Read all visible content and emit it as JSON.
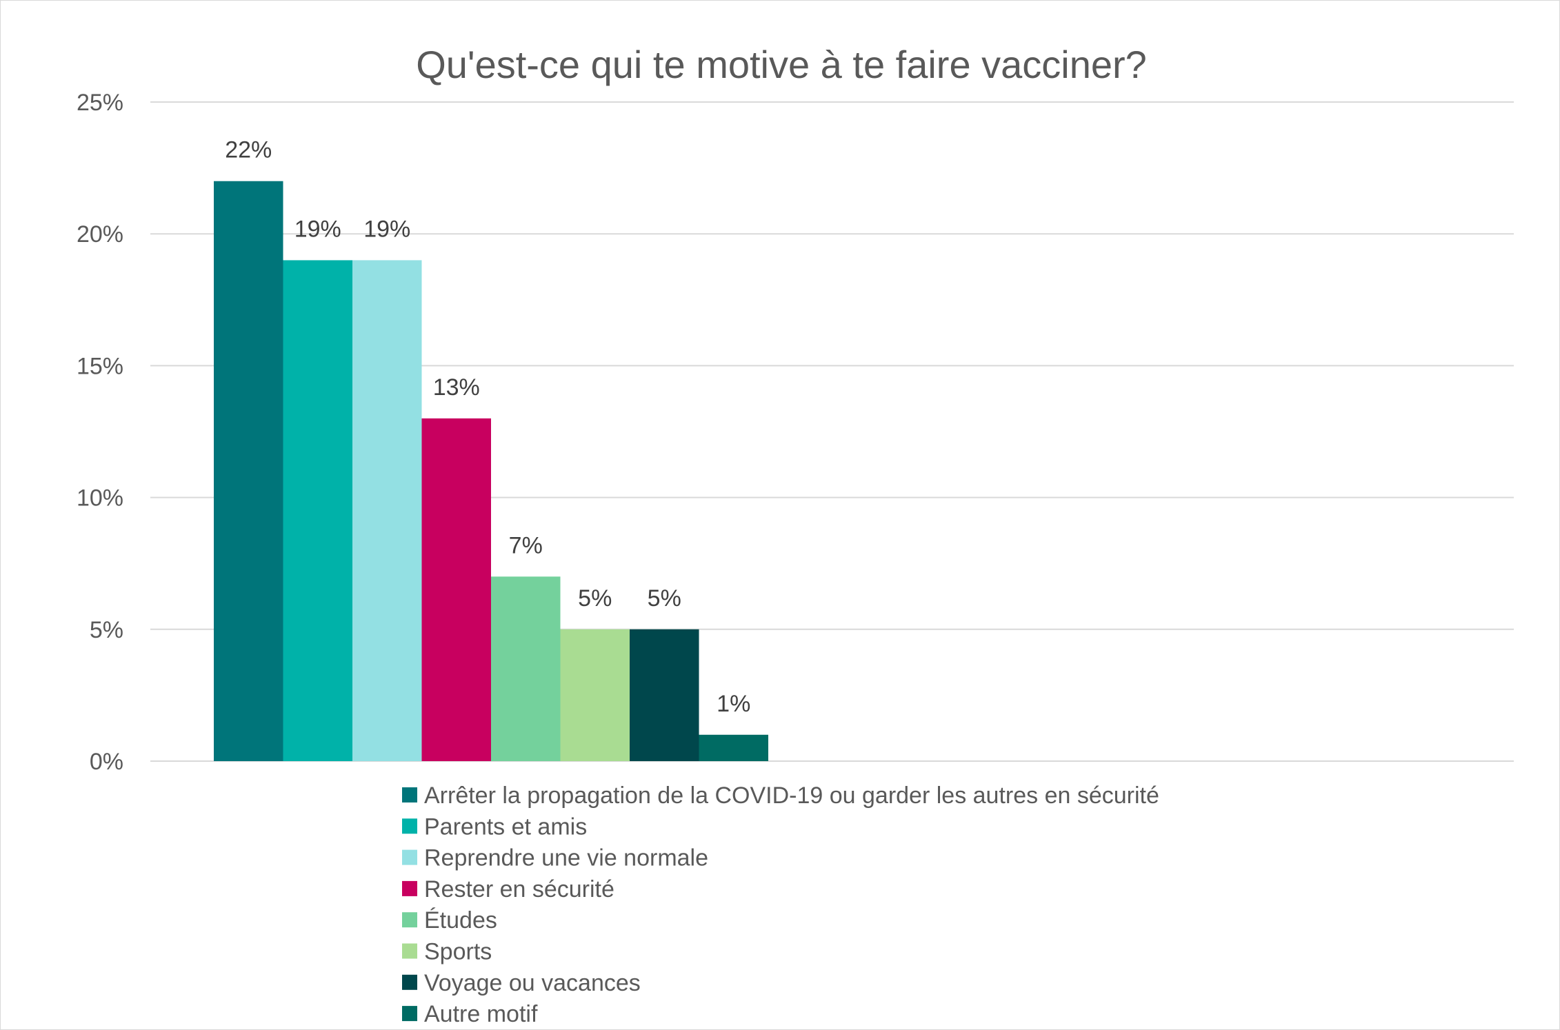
{
  "chart_data": {
    "type": "bar",
    "title": "Qu'est-ce qui te motive à te faire vacciner?",
    "xlabel": "",
    "ylabel": "",
    "ylim": [
      0,
      25
    ],
    "y_ticks": [
      "0%",
      "5%",
      "10%",
      "15%",
      "20%",
      "25%"
    ],
    "grid": true,
    "legend_position": "bottom",
    "series": [
      {
        "name": "Arrêter la propagation de la COVID-19 ou garder les autres en sécurité",
        "value": 22,
        "label": "22%",
        "color": "#00757A"
      },
      {
        "name": "Parents et amis",
        "value": 19,
        "label": "19%",
        "color": "#00B2A9"
      },
      {
        "name": "Reprendre une vie normale",
        "value": 19,
        "label": "19%",
        "color": "#93E0E3"
      },
      {
        "name": "Rester en sécurité",
        "value": 13,
        "label": "13%",
        "color": "#C8005F"
      },
      {
        "name": "Études",
        "value": 7,
        "label": "7%",
        "color": "#74D19C"
      },
      {
        "name": "Sports",
        "value": 5,
        "label": "5%",
        "color": "#A9DC92"
      },
      {
        "name": "Voyage ou vacances",
        "value": 5,
        "label": "5%",
        "color": "#00474C"
      },
      {
        "name": "Autre motif",
        "value": 1,
        "label": "1%",
        "color": "#006B63"
      }
    ]
  }
}
